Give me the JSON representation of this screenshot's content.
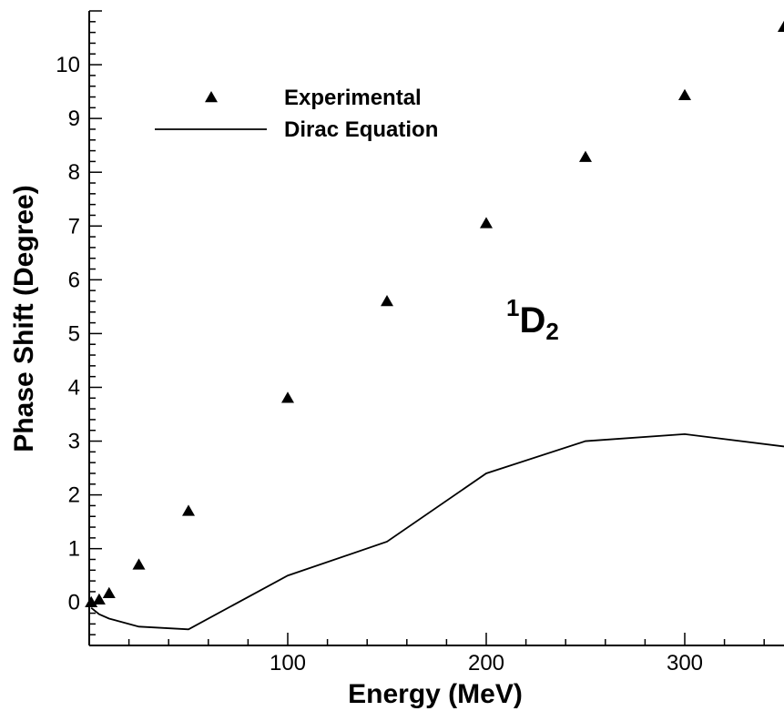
{
  "chart_data": {
    "type": "scatter",
    "title": "",
    "xlabel": "Energy (MeV)",
    "ylabel": "Phase Shift (Degree)",
    "xlim": [
      0,
      350
    ],
    "ylim": [
      -0.8,
      11
    ],
    "x_ticks": [
      100,
      200,
      300
    ],
    "y_ticks": [
      0,
      1,
      2,
      3,
      4,
      5,
      6,
      7,
      8,
      9,
      10
    ],
    "grid": false,
    "legend_position": "top-left",
    "series": [
      {
        "name": "Experimental",
        "kind": "marker",
        "marker": "triangle",
        "x": [
          1,
          5,
          10,
          25,
          50,
          100,
          150,
          200,
          250,
          300,
          350
        ],
        "y": [
          0.0,
          0.05,
          0.17,
          0.7,
          1.7,
          3.8,
          5.6,
          7.05,
          8.28,
          9.43,
          10.7
        ]
      },
      {
        "name": "Dirac Equation",
        "kind": "line",
        "x": [
          1,
          5,
          10,
          25,
          50,
          100,
          150,
          200,
          250,
          300,
          350
        ],
        "y": [
          -0.1,
          -0.22,
          -0.3,
          -0.45,
          -0.5,
          0.5,
          1.13,
          2.4,
          3.0,
          3.13,
          2.9
        ]
      }
    ],
    "annotation": {
      "base": "D",
      "superscript": "1",
      "subscript": "2"
    }
  }
}
